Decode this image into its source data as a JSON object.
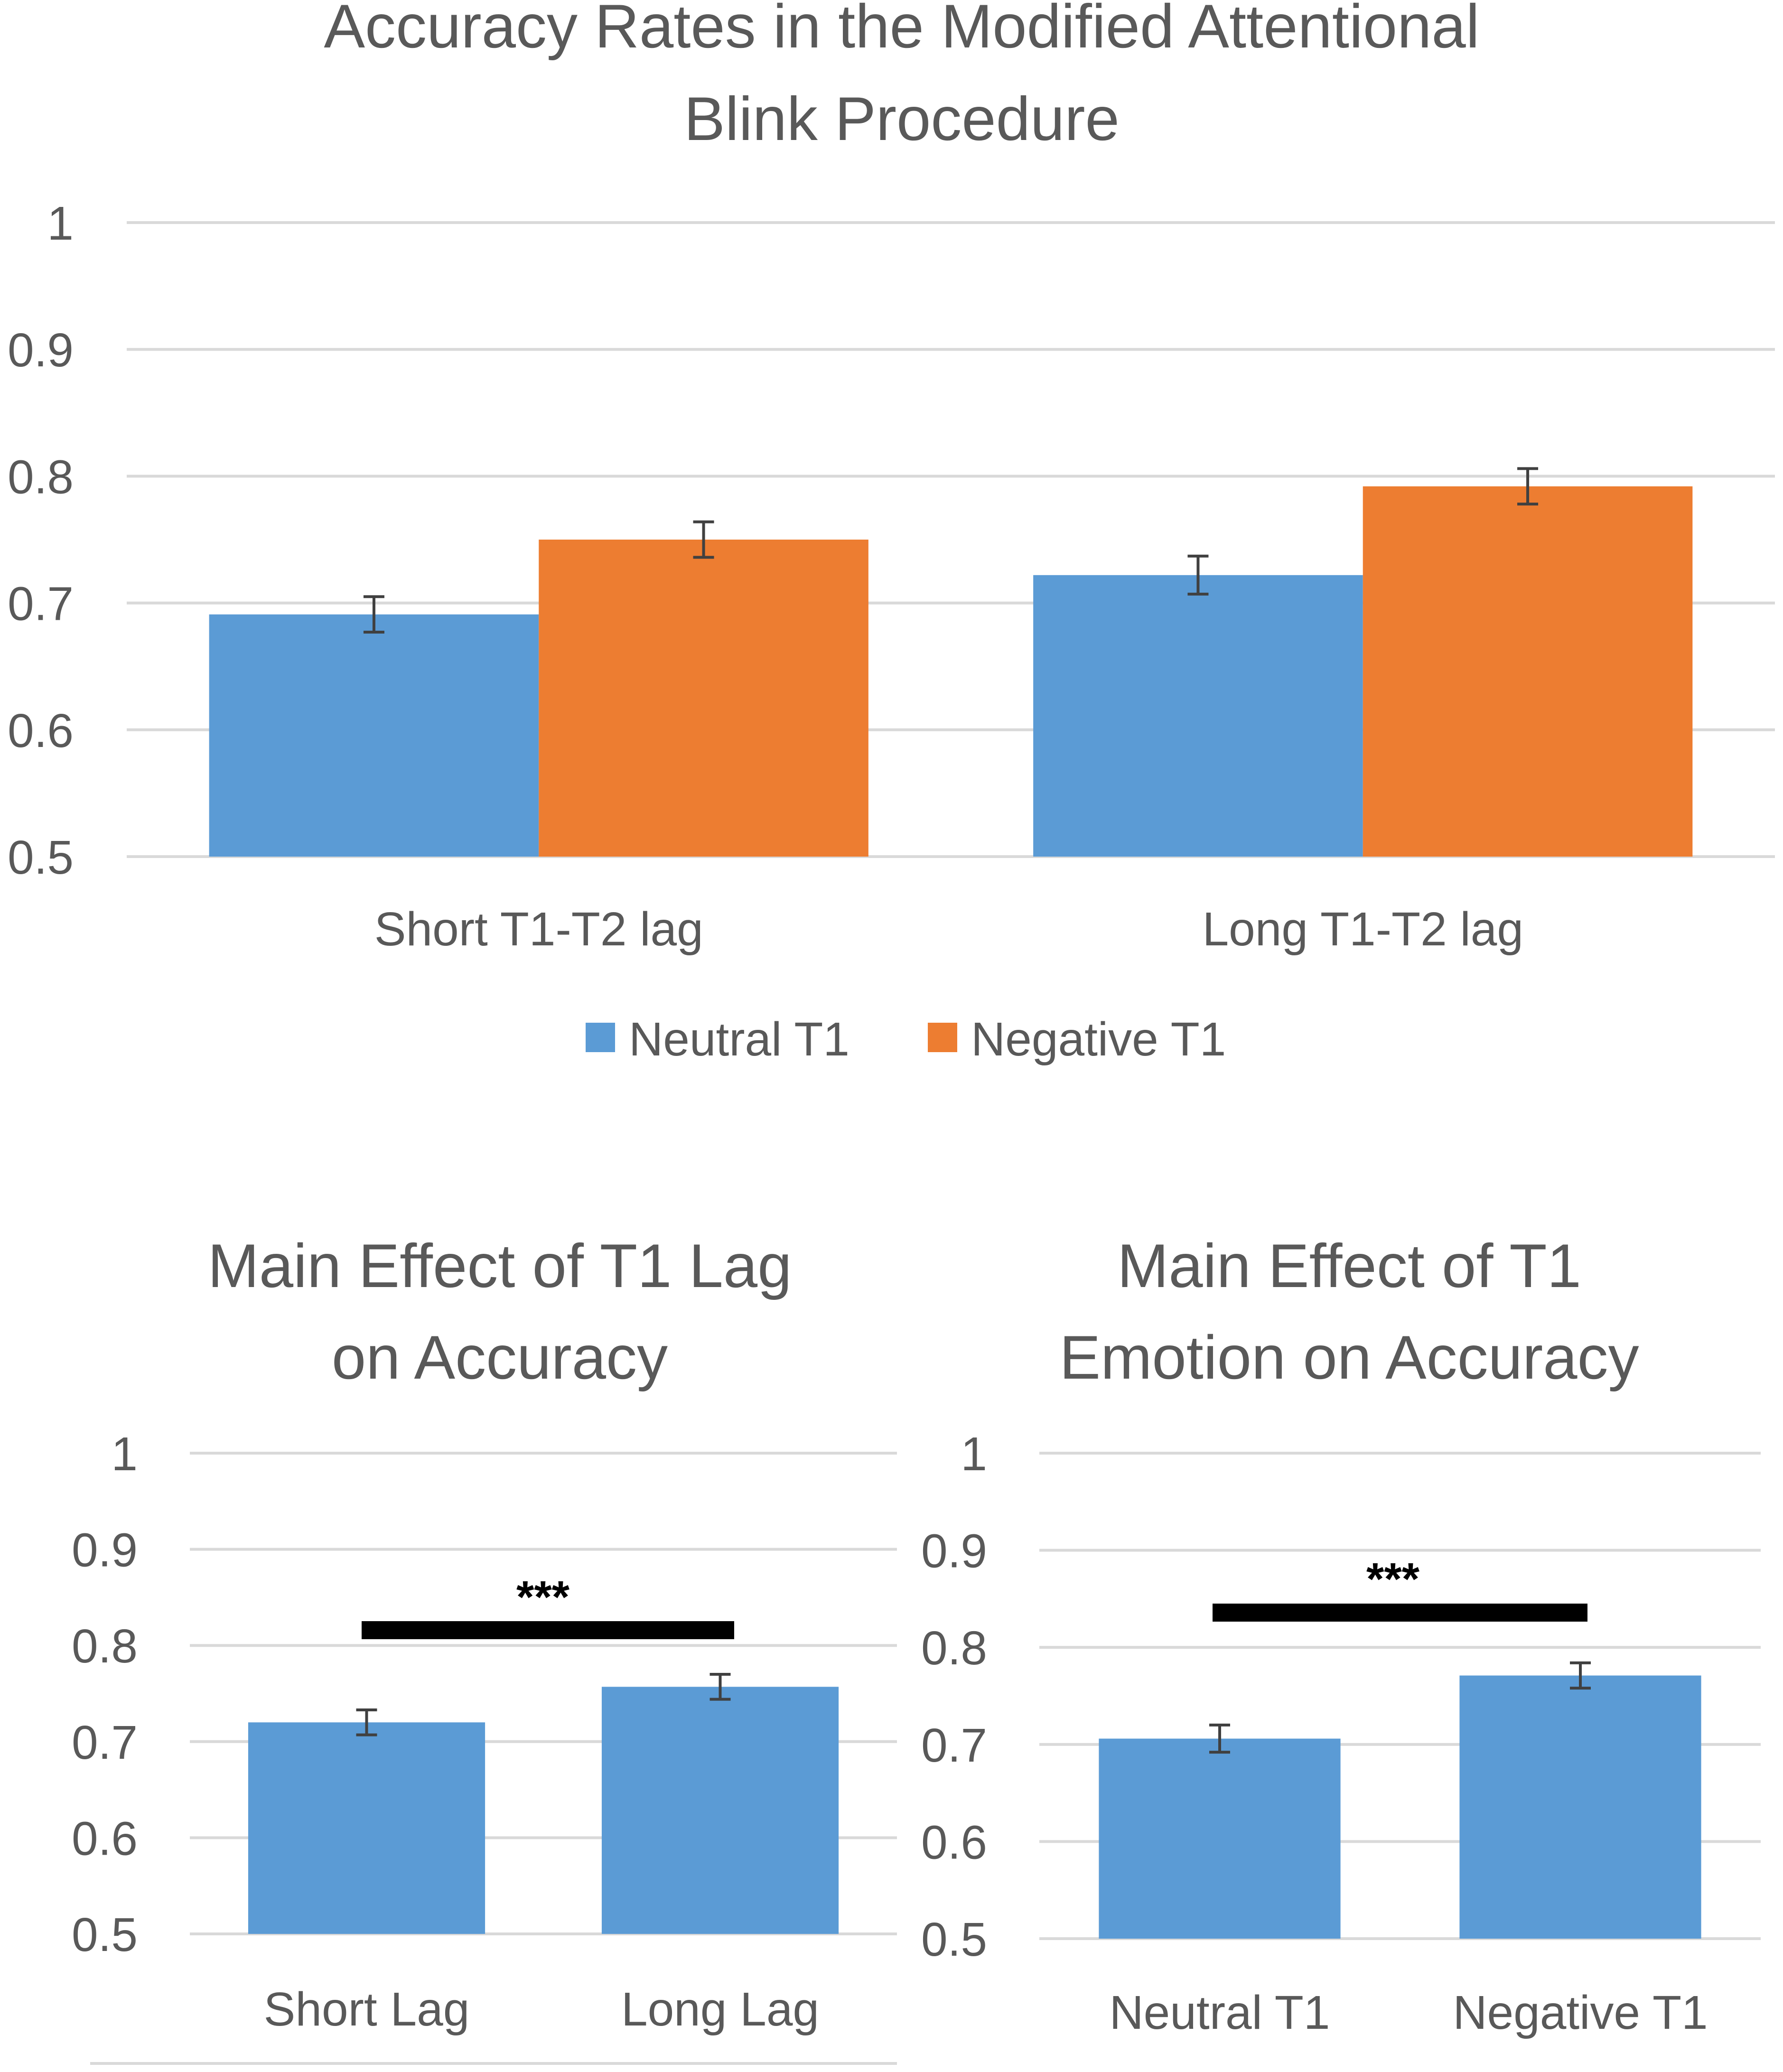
{
  "colors": {
    "neutral": "#5B9BD5",
    "negative": "#ED7D31",
    "gridline": "#D9D9D9",
    "text": "#595959",
    "errorbar": "#404040",
    "sigbar": "#000000"
  },
  "chart_data": [
    {
      "type": "bar",
      "title": "Accuracy Rates in the Modified Attentional Blink Procedure",
      "title_lines": [
        "Accuracy Rates in the Modified Attentional",
        "Blink Procedure"
      ],
      "categories": [
        "Short T1-T2 lag",
        "Long T1-T2 lag"
      ],
      "series": [
        {
          "name": "Neutral T1",
          "values": [
            0.691,
            0.722
          ],
          "errors": [
            0.014,
            0.015
          ]
        },
        {
          "name": "Negative T1",
          "values": [
            0.75,
            0.792
          ],
          "errors": [
            0.014,
            0.014
          ]
        }
      ],
      "ylim": [
        0.5,
        1
      ],
      "yticks": [
        "0.5",
        "0.6",
        "0.7",
        "0.8",
        "0.9",
        "1"
      ],
      "legend": "bottom"
    },
    {
      "type": "bar",
      "title": "Main Effect of T1 Lag on Accuracy",
      "title_lines": [
        "Main Effect of T1 Lag",
        "on Accuracy"
      ],
      "categories": [
        "Short Lag",
        "Long Lag"
      ],
      "values": [
        0.72,
        0.757
      ],
      "errors": [
        0.013,
        0.013
      ],
      "ylim": [
        0.5,
        1
      ],
      "yticks": [
        "0.5",
        "0.6",
        "0.7",
        "0.8",
        "0.9",
        "1"
      ],
      "significance": "***"
    },
    {
      "type": "bar",
      "title": "Main Effect of T1 Emotion on Accuracy",
      "title_lines": [
        "Main Effect of T1",
        "Emotion on Accuracy"
      ],
      "categories": [
        "Neutral T1",
        "Negative T1"
      ],
      "values": [
        0.706,
        0.771
      ],
      "errors": [
        0.014,
        0.013
      ],
      "ylim": [
        0.5,
        1
      ],
      "yticks": [
        "0.5",
        "0.6",
        "0.7",
        "0.8",
        "0.9",
        "1"
      ],
      "significance": "***"
    }
  ]
}
